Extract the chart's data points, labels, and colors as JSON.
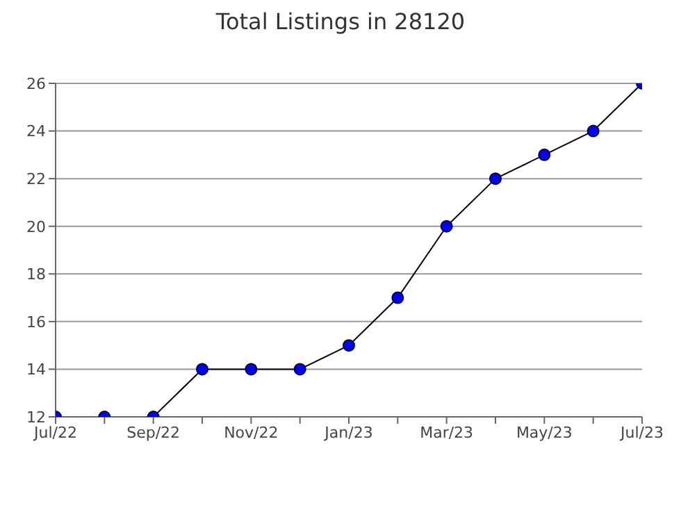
{
  "chart_data": {
    "type": "line",
    "title": "Total Listings in 28120",
    "categories": [
      "Jul/22",
      null,
      "Sep/22",
      null,
      "Nov/22",
      null,
      "Jan/23",
      null,
      "Mar/23",
      null,
      "May/23",
      null,
      "Jul/23"
    ],
    "series": [
      {
        "color": "#0000ff",
        "values": [
          12,
          12,
          12,
          14,
          14,
          14,
          15,
          17,
          20,
          22,
          23,
          24,
          26
        ]
      }
    ],
    "ylim": [
      12,
      26
    ],
    "yticks": [
      12,
      14,
      16,
      18,
      20,
      22,
      24,
      26
    ],
    "grid": "y",
    "marker": "circle",
    "legend": false
  }
}
